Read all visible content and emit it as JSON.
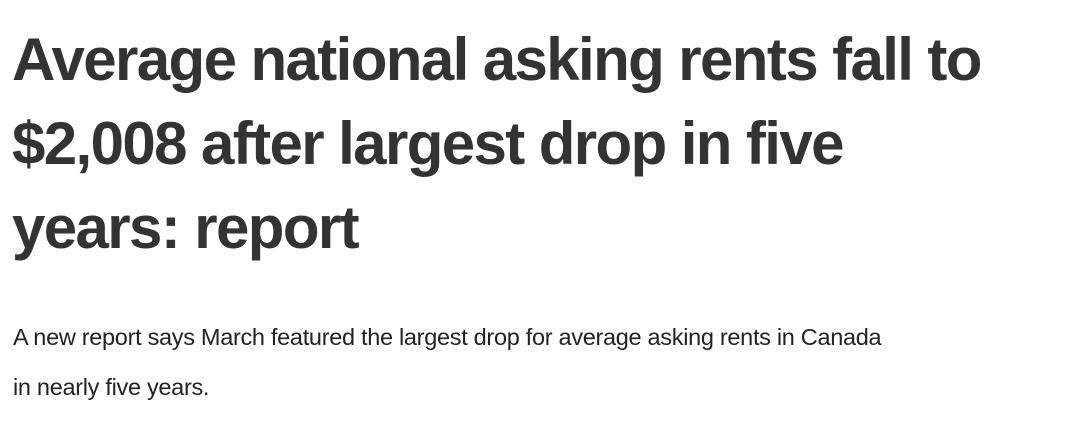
{
  "article": {
    "headline_lines": [
      "Average national asking rents fall to",
      "$2,008 after largest drop in five",
      "years: report"
    ],
    "dek_lines": [
      "A new report says March featured the largest drop for average asking rents in Canada",
      "in nearly five years."
    ]
  },
  "colors": {
    "headline": "#333333",
    "body": "#222222",
    "background": "#ffffff"
  }
}
